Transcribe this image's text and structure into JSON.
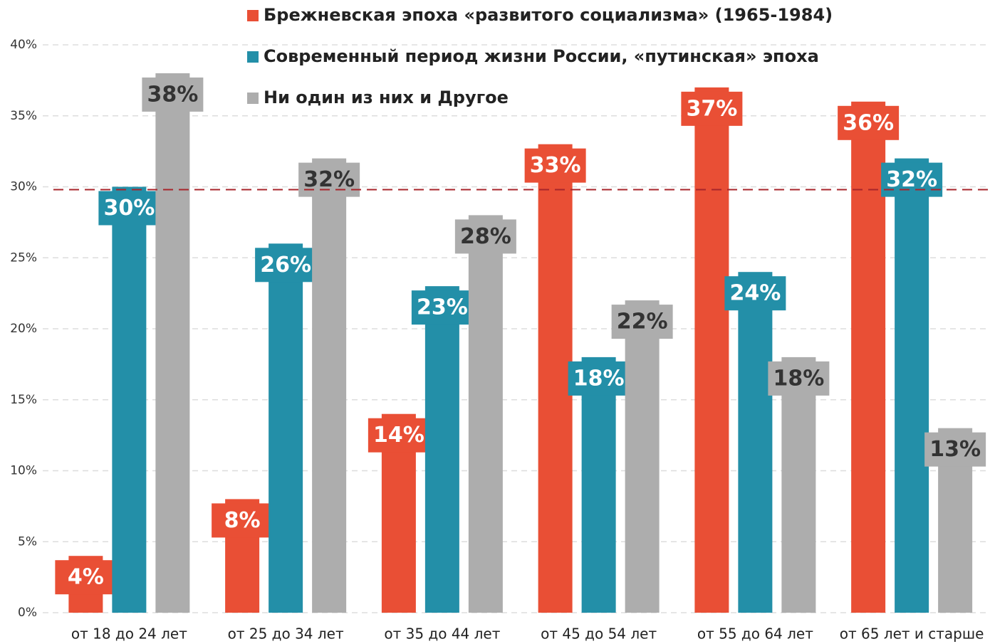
{
  "chart_data": {
    "type": "bar",
    "categories": [
      "от 18 до 24 лет",
      "от 25 до 34 лет",
      "от 35 до 44 лет",
      "от 45 до 54 лет",
      "от 55 до 64 лет",
      "от 65 лет и старше"
    ],
    "series": [
      {
        "name": "Брежневская эпоха «развитого социализма» (1965-1984)",
        "color": "#e94f35",
        "label_color": "#ffffff",
        "values": [
          4,
          8,
          14,
          33,
          37,
          36
        ],
        "value_labels": [
          "4%",
          "8%",
          "14%",
          "33%",
          "37%",
          "36%"
        ]
      },
      {
        "name": "Современный период жизни России, «путинская» эпоха",
        "color": "#238fa8",
        "label_color": "#ffffff",
        "values": [
          30,
          26,
          23,
          18,
          24,
          32
        ],
        "value_labels": [
          "30%",
          "26%",
          "23%",
          "18%",
          "24%",
          "32%"
        ]
      },
      {
        "name": "Ни один из них и Другое",
        "color": "#adadad",
        "label_color": "#333333",
        "values": [
          38,
          32,
          28,
          22,
          18,
          13
        ],
        "value_labels": [
          "38%",
          "32%",
          "28%",
          "22%",
          "18%",
          "13%"
        ]
      }
    ],
    "ylim": [
      0,
      40
    ],
    "yticks": [
      {
        "value": 0,
        "label": "0%"
      },
      {
        "value": 5,
        "label": "5%"
      },
      {
        "value": 10,
        "label": "10%"
      },
      {
        "value": 15,
        "label": "15%"
      },
      {
        "value": 20,
        "label": "20%"
      },
      {
        "value": 25,
        "label": "25%"
      },
      {
        "value": 30,
        "label": "30%"
      },
      {
        "value": 35,
        "label": "35%"
      },
      {
        "value": 40,
        "label": "40%"
      }
    ],
    "grid": true,
    "reference_line": {
      "value": 29.8,
      "color": "#a8252b"
    }
  }
}
